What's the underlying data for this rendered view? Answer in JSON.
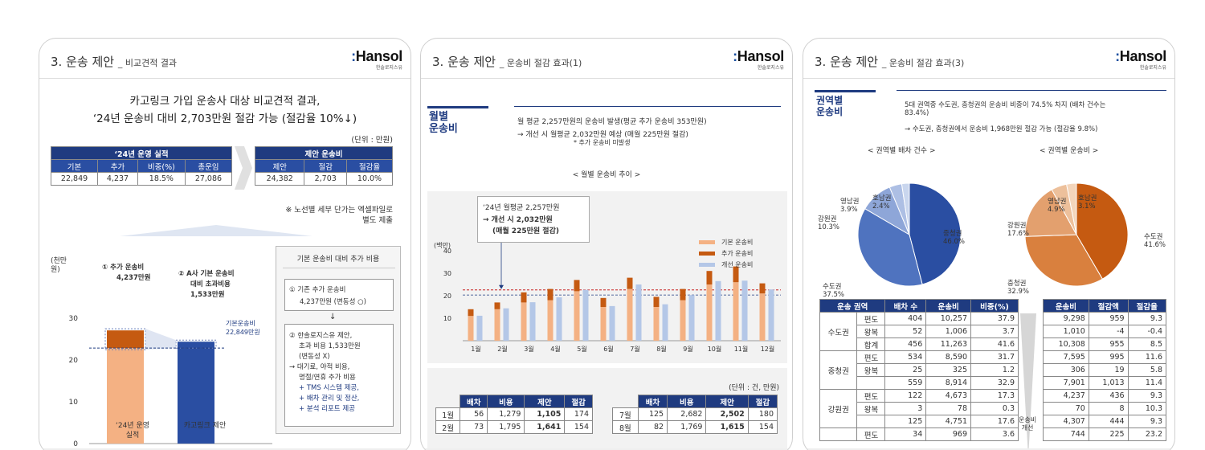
{
  "colors": {
    "navy": "#1f3b80",
    "blue": "#2a4ea2",
    "orange": "#c55a11",
    "peach": "#f4b183",
    "lightblue": "#b4c7e7"
  },
  "logo": {
    "word": "Hansol",
    "tiny": "한솔로지스유"
  },
  "panel1": {
    "title": "3. 운송 제안",
    "subtitle": "_ 비교견적 결과",
    "headline1": "카고링크 가입 운송사 대상 비교견적 결과,",
    "headline2": "‘24년 운송비 대비 2,703만원 절감 가능 (절감율 10%↓)",
    "unit": "(단위 : 만원)",
    "left_table": {
      "group": "‘24년 운영 실적",
      "headers": [
        "기본",
        "추가",
        "비중(%)",
        "총운임"
      ],
      "values": [
        "22,849",
        "4,237",
        "18.5%",
        "27,086"
      ]
    },
    "right_table": {
      "group": "제안 운송비",
      "headers": [
        "제안",
        "절감",
        "절감율"
      ],
      "values": [
        "24,382",
        "2,703",
        "10.0%"
      ]
    },
    "note1": "※ 노선별 세부 단가는 엑셀파일로",
    "note2": "별도 제출",
    "axis_unit": "(천만\n원)",
    "ann1_title": "① 추가 운송비",
    "ann1_value": "4,237만원",
    "ann2_l1": "② A사 기본 운송비",
    "ann2_l2": "대비 초과비용",
    "ann2_l3": "1,533만원",
    "base_l1": "기본운송비",
    "base_l2": "22,849만원",
    "cat1_l1": "‘24년 운영",
    "cat1_l2": "실적",
    "cat2": "카고링크 제안",
    "box_title": "기본 운송비 대비 추가 비용",
    "box1_l1": "① 기존 추가 운송비",
    "box1_l2": "4,237만원 (변동성 ○)",
    "box2_lines": [
      "② 한솔로지스유 제안,",
      "초과 비용 1,533만원",
      "(변동성 X)"
    ],
    "box3_lines": [
      "→ 대기료, 야적 비용,",
      "명절/연휴 추가 비용",
      "+ TMS 시스템 제공,",
      "+ 배차 관리 및 정산,",
      "+ 분석 리포트 제공"
    ]
  },
  "panel2": {
    "title": "3. 운송 제안",
    "subtitle": "_ 운송비 절감 효과(1)",
    "side_label": "월별\n운송비",
    "line1": "월 평균 2,257만원의 운송비 발생(평균 추가 운송비 353만원)",
    "line2": "→ 개선 시 월평균 2,032만원 예상 (매월 225만원 절감)",
    "line3": "* 추가 운송비 미발생",
    "chart_title": "< 월별 운송비 추이 >",
    "ann_l1": "‘24년 월평균 2,257만원",
    "ann_l2": "→ 개선 시 2,032만원",
    "ann_l3": "(매월 225만원 절감)",
    "table_unit": "(단위 : 건, 만원)",
    "table_headers": [
      "배차",
      "비용",
      "제안",
      "절감"
    ],
    "rows_left": [
      [
        "1월",
        "56",
        "1,279",
        "1,105",
        "174"
      ],
      [
        "2월",
        "73",
        "1,795",
        "1,641",
        "154"
      ]
    ],
    "rows_right": [
      [
        "7월",
        "125",
        "2,682",
        "2,502",
        "180"
      ],
      [
        "8월",
        "82",
        "1,769",
        "1,615",
        "154"
      ]
    ]
  },
  "panel3": {
    "title": "3. 운송 제안",
    "subtitle": "_ 운송비 절감 효과(3)",
    "side_label": "권역별\n운송비",
    "line1": "5대 권역중 수도권, 충청권의 운송비 비중이 74.5% 차지 (배차 건수는",
    "line1b": "83.4%)",
    "line2": "→ 수도권, 충청권에서 운송비 1,968만원 절감 가능 (절감율 9.8%)",
    "pie1_title": "< 권역별 배차 건수 >",
    "pie2_title": "< 권역별 운송비 >",
    "pie1_labels": [
      [
        "영남권",
        "3.9%"
      ],
      [
        "호남권",
        "2.4%"
      ],
      [
        "강원권",
        "10.3%"
      ],
      [
        "중청권",
        "46.0%"
      ],
      [
        "수도권",
        "37.5%"
      ]
    ],
    "pie2_labels": [
      [
        "영남권",
        "4.9%"
      ],
      [
        "호남권",
        "3.1%"
      ],
      [
        "강원권",
        "17.6%"
      ],
      [
        "수도권",
        "41.6%"
      ],
      [
        "충청권",
        "32.9%"
      ]
    ],
    "left_headers": [
      "운송 권역",
      "배차 수",
      "운송비",
      "비중(%)"
    ],
    "right_headers": [
      "운송비",
      "절감액",
      "절감율"
    ],
    "side_note": "운송비\n개선",
    "regions": [
      {
        "name": "수도권",
        "rows": [
          [
            "편도",
            "404",
            "10,257",
            "37.9"
          ],
          [
            "왕복",
            "52",
            "1,006",
            "3.7"
          ],
          [
            "합계",
            "456",
            "11,263",
            "41.6"
          ]
        ]
      },
      {
        "name": "중청권",
        "rows": [
          [
            "편도",
            "534",
            "8,590",
            "31.7"
          ],
          [
            "왕복",
            "25",
            "325",
            "1.2"
          ],
          [
            "",
            "559",
            "8,914",
            "32.9"
          ]
        ]
      },
      {
        "name": "강원권",
        "rows": [
          [
            "편도",
            "122",
            "4,673",
            "17.3"
          ],
          [
            "왕복",
            "3",
            "78",
            "0.3"
          ],
          [
            "",
            "125",
            "4,751",
            "17.6"
          ]
        ]
      },
      {
        "name": "",
        "rows": [
          [
            "편도",
            "34",
            "969",
            "3.6"
          ]
        ]
      }
    ],
    "right_rows": [
      [
        "9,298",
        "959",
        "9.3"
      ],
      [
        "1,010",
        "-4",
        "-0.4"
      ],
      [
        "10,308",
        "955",
        "8.5"
      ],
      [
        "7,595",
        "995",
        "11.6"
      ],
      [
        "306",
        "19",
        "5.8"
      ],
      [
        "7,901",
        "1,013",
        "11.4"
      ],
      [
        "4,237",
        "436",
        "9.3"
      ],
      [
        "70",
        "8",
        "10.3"
      ],
      [
        "4,307",
        "444",
        "9.3"
      ],
      [
        "744",
        "225",
        "23.2"
      ]
    ]
  },
  "chart_data": [
    {
      "type": "bar",
      "title": "",
      "categories": [
        "‘24년 운영 실적",
        "카고링크 제안"
      ],
      "series": [
        {
          "name": "",
          "values": [
            22.849,
            24.382
          ]
        },
        {
          "name": "",
          "values": [
            4.237,
            0
          ]
        }
      ],
      "ylabel": "(천만 원)",
      "ylim": [
        0,
        30
      ],
      "yticks": [
        0,
        10,
        20,
        30
      ]
    },
    {
      "type": "bar",
      "title": "< 월별 운송비 추이 >",
      "ylabel": "(백만)",
      "ylim": [
        0,
        45
      ],
      "yticks": [
        10,
        20,
        30,
        40
      ],
      "categories": [
        "1월",
        "2월",
        "3월",
        "4월",
        "5월",
        "6월",
        "7월",
        "8월",
        "9월",
        "10월",
        "11월",
        "12월"
      ],
      "series": [
        {
          "name": "기본 운송비",
          "values": [
            11,
            14,
            17,
            18,
            22,
            15,
            23,
            15,
            18,
            25,
            26,
            21
          ]
        },
        {
          "name": "추가 운송비",
          "values": [
            3,
            3,
            4.5,
            5,
            5,
            4,
            5,
            4.5,
            5,
            6,
            7,
            4.5
          ]
        },
        {
          "name": "개선 운송비",
          "values": [
            11.1,
            14.4,
            17.1,
            19.3,
            22.6,
            15.4,
            25,
            16.2,
            20.3,
            26.5,
            26.7,
            22.8
          ]
        }
      ],
      "reference_lines": [
        22.57,
        20.32
      ],
      "legend": "top-right"
    },
    {
      "type": "pie",
      "title": "< 권역별 배차 건수 >",
      "labels": [
        "중청권",
        "수도권",
        "강원권",
        "영남권",
        "호남권"
      ],
      "values": [
        46.0,
        37.5,
        10.3,
        3.9,
        2.4
      ]
    },
    {
      "type": "pie",
      "title": "< 권역별 운송비 >",
      "labels": [
        "수도권",
        "충청권",
        "강원권",
        "영남권",
        "호남권"
      ],
      "values": [
        41.6,
        32.9,
        17.6,
        4.9,
        3.1
      ]
    }
  ]
}
